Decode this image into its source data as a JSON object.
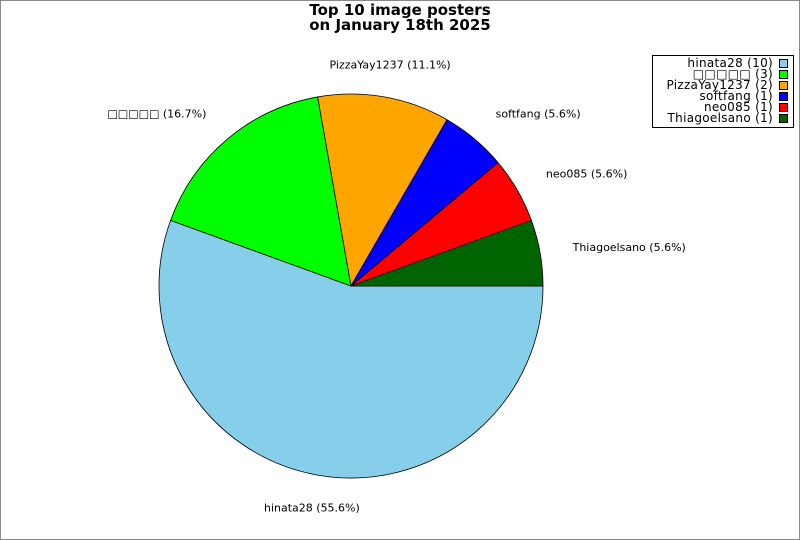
{
  "chart_data": {
    "type": "pie",
    "title_lines": [
      "Top 10 image posters",
      "on January 18th 2025"
    ],
    "slices": [
      {
        "label": "hinata28",
        "value": 10,
        "percent_label": "hinata28 (55.6%)",
        "legend_label": "hinata28 (10)",
        "color": "#87CEEB"
      },
      {
        "label": "□□□□□",
        "value": 3,
        "percent_label": "□□□□□ (16.7%)",
        "legend_label": "□□□□□ (3)",
        "color": "#00FF00"
      },
      {
        "label": "PizzaYay1237",
        "value": 2,
        "percent_label": "PizzaYay1237 (11.1%)",
        "legend_label": "PizzaYay1237 (2)",
        "color": "#FFA500"
      },
      {
        "label": "softfang",
        "value": 1,
        "percent_label": "softfang (5.6%)",
        "legend_label": "softfang (1)",
        "color": "#0000FF"
      },
      {
        "label": "neo085",
        "value": 1,
        "percent_label": "neo085 (5.6%)",
        "legend_label": "neo085 (1)",
        "color": "#FF0000"
      },
      {
        "label": "Thiagoelsano",
        "value": 1,
        "percent_label": "Thiagoelsano (5.6%)",
        "legend_label": "Thiagoelsano (1)",
        "color": "#006400"
      }
    ],
    "legend_position": "top-right"
  }
}
